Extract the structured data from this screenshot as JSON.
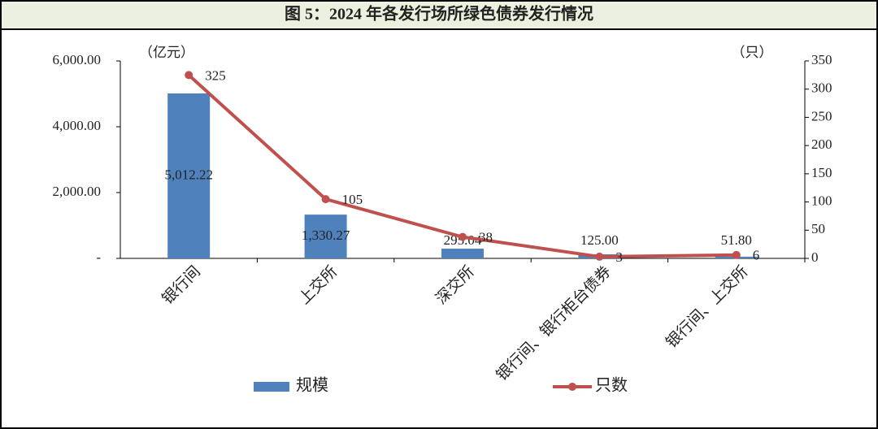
{
  "chart_data": {
    "type": "bar-line",
    "title": "图 5：2024 年各发行场所绿色债券发行情况",
    "y_label": "（亿元）",
    "y2_label": "（只）",
    "categories": [
      "银行间",
      "上交所",
      "深交所",
      "银行间、银行柜台债券",
      "银行间、上交所"
    ],
    "series": [
      {
        "name": "规模",
        "type": "bar",
        "color": "#4f81bd",
        "values": [
          5012.22,
          1330.27,
          295.04,
          125.0,
          51.8
        ],
        "value_labels": [
          "5,012.22",
          "1,330.27",
          "295.04",
          "125.00",
          "51.80"
        ]
      },
      {
        "name": "只数",
        "type": "line",
        "axis": "y2",
        "color": "#c0504d",
        "values": [
          325,
          105,
          38,
          3,
          6
        ]
      }
    ],
    "ylim": [
      0,
      6000
    ],
    "yticks": [
      {
        "value": 0,
        "label": "-"
      },
      {
        "value": 2000,
        "label": "2,000.00"
      },
      {
        "value": 4000,
        "label": "4,000.00"
      },
      {
        "value": 6000,
        "label": "6,000.00"
      }
    ],
    "y2lim": [
      0,
      350
    ],
    "y2ticks": [
      0,
      50,
      100,
      150,
      200,
      250,
      300,
      350
    ]
  }
}
